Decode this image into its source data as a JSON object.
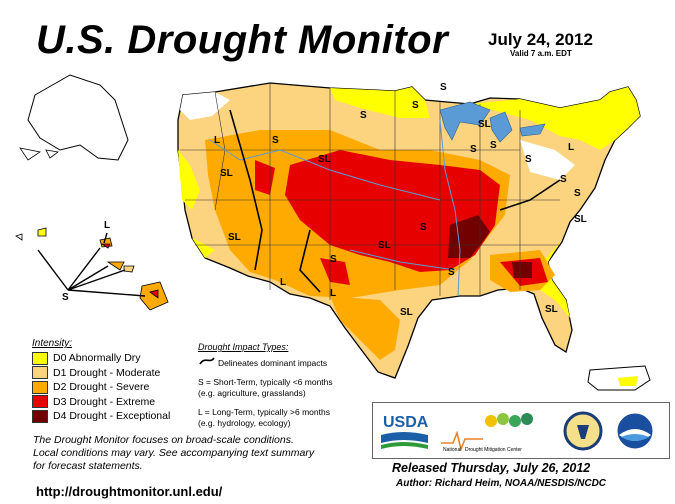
{
  "header": {
    "title": "U.S. Drought Monitor",
    "date": "July 24, 2012",
    "valid": "Valid 7 a.m. EDT"
  },
  "legend": {
    "heading": "Intensity:",
    "items": [
      {
        "label": "D0 Abnormally Dry",
        "color": "#ffff00"
      },
      {
        "label": "D1 Drought - Moderate",
        "color": "#fcd37f"
      },
      {
        "label": "D2 Drought - Severe",
        "color": "#ffaa00"
      },
      {
        "label": "D3 Drought - Extreme",
        "color": "#e60000"
      },
      {
        "label": "D4 Drought - Exceptional",
        "color": "#730000"
      }
    ]
  },
  "impacts": {
    "heading": "Drought Impact Types:",
    "boundary": "Delineates dominant impacts",
    "short_1": "S = Short-Term, typically <6 months",
    "short_2": "(e.g. agriculture, grasslands)",
    "long_1": "L = Long-Term, typically >6 months",
    "long_2": "(e.g. hydrology, ecology)"
  },
  "map_labels": {
    "sl": "SL",
    "s": "S",
    "l": "L"
  },
  "note": {
    "line1": "The Drought Monitor focuses on broad-scale conditions.",
    "line2": "Local conditions may vary. See accompanying text summary",
    "line3": "for forecast statements."
  },
  "logos": {
    "usda": "USDA",
    "ndmc_1": "National",
    "ndmc_2": "Drought Mitigation Center"
  },
  "footer": {
    "url": "http://droughtmonitor.unl.edu/",
    "released": "Released Thursday, July 26, 2012",
    "author": "Author: Richard Heim, NOAA/NESDIS/NCDC"
  },
  "colors": {
    "water": "#5b9bd5",
    "border": "#000000"
  }
}
